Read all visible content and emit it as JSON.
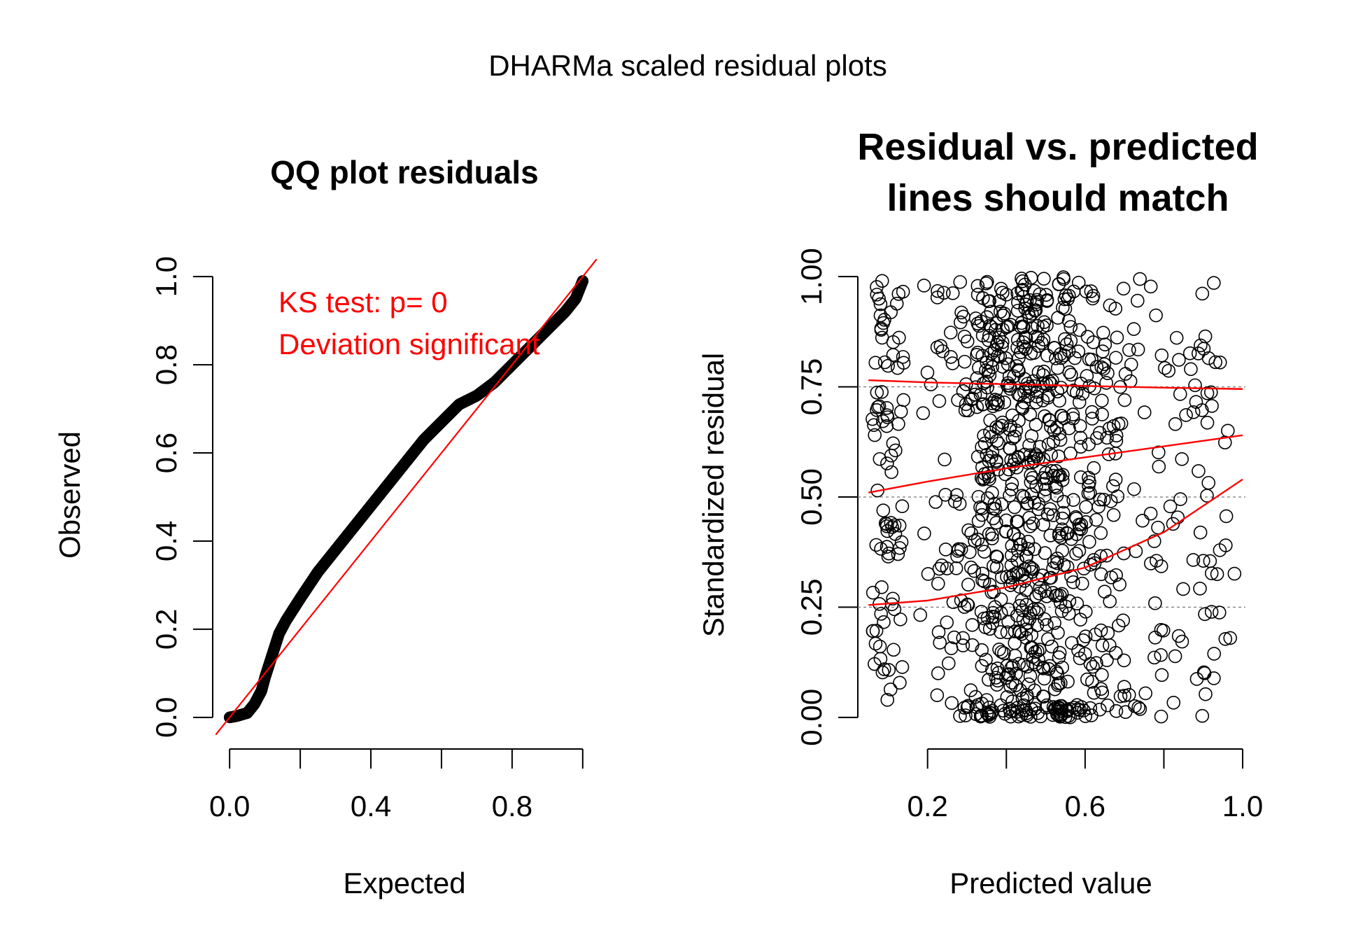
{
  "figure_title": "DHARMa scaled residual plots",
  "colors": {
    "ink": "#000000",
    "accent": "#ff0000",
    "grid": "#777777",
    "background": "#ffffff"
  },
  "chart_data": [
    {
      "type": "scatter",
      "title": "QQ plot residuals",
      "xlabel": "Expected",
      "ylabel": "Observed",
      "xlim": [
        -0.04,
        1.04
      ],
      "ylim": [
        -0.04,
        1.04
      ],
      "x_ticks": [
        0.0,
        0.2,
        0.4,
        0.6,
        0.8,
        1.0
      ],
      "x_tick_labels": [
        "0.0",
        "",
        "0.4",
        "",
        "0.8",
        ""
      ],
      "y_ticks": [
        0.0,
        0.2,
        0.4,
        0.6,
        0.8,
        1.0
      ],
      "y_tick_labels": [
        "0.0",
        "0.2",
        "0.4",
        "0.6",
        "0.8",
        "1.0"
      ],
      "annotations": [
        "KS test: p= 0",
        "Deviation  significant"
      ],
      "reference_line": {
        "intercept": 0,
        "slope": 1
      },
      "series": [
        {
          "points": [
            [
              0.0,
              0.0
            ],
            [
              0.02,
              0.003
            ],
            [
              0.05,
              0.01
            ],
            [
              0.07,
              0.03
            ],
            [
              0.09,
              0.06
            ],
            [
              0.1,
              0.09
            ],
            [
              0.12,
              0.14
            ],
            [
              0.14,
              0.19
            ],
            [
              0.16,
              0.22
            ],
            [
              0.2,
              0.27
            ],
            [
              0.25,
              0.33
            ],
            [
              0.3,
              0.38
            ],
            [
              0.35,
              0.43
            ],
            [
              0.4,
              0.48
            ],
            [
              0.45,
              0.53
            ],
            [
              0.5,
              0.58
            ],
            [
              0.55,
              0.63
            ],
            [
              0.6,
              0.67
            ],
            [
              0.65,
              0.71
            ],
            [
              0.7,
              0.73
            ],
            [
              0.75,
              0.76
            ],
            [
              0.8,
              0.8
            ],
            [
              0.85,
              0.84
            ],
            [
              0.9,
              0.88
            ],
            [
              0.95,
              0.92
            ],
            [
              0.98,
              0.95
            ],
            [
              0.99,
              0.97
            ],
            [
              1.0,
              0.99
            ]
          ]
        }
      ],
      "grid": false
    },
    {
      "type": "scatter",
      "title": "Residual vs. predicted",
      "subtitle": "lines should match",
      "xlabel": "Predicted value",
      "ylabel": "Standardized residual",
      "xlim": [
        0.03,
        1.0
      ],
      "ylim": [
        -0.04,
        1.04
      ],
      "x_ticks": [
        0.2,
        0.4,
        0.6,
        0.8,
        1.0
      ],
      "x_tick_labels": [
        "0.2",
        "",
        "0.6",
        "",
        "1.0"
      ],
      "y_ticks": [
        0.0,
        0.25,
        0.5,
        0.75,
        1.0
      ],
      "y_tick_labels": [
        "0.00",
        "0.25",
        "0.50",
        "0.75",
        "1.00"
      ],
      "reference_lines_y": [
        0.25,
        0.5,
        0.75
      ],
      "quantile_curves": [
        {
          "x": [
            0.05,
            0.2,
            0.4,
            0.6,
            0.8,
            1.0
          ],
          "y": [
            0.255,
            0.265,
            0.295,
            0.34,
            0.42,
            0.54
          ]
        },
        {
          "x": [
            0.05,
            0.2,
            0.4,
            0.6,
            0.8,
            1.0
          ],
          "y": [
            0.51,
            0.535,
            0.565,
            0.59,
            0.615,
            0.64
          ]
        },
        {
          "x": [
            0.05,
            0.2,
            0.4,
            0.6,
            0.8,
            1.0
          ],
          "y": [
            0.765,
            0.76,
            0.756,
            0.752,
            0.748,
            0.745
          ]
        }
      ],
      "point_count": 1000,
      "grid": false
    }
  ]
}
